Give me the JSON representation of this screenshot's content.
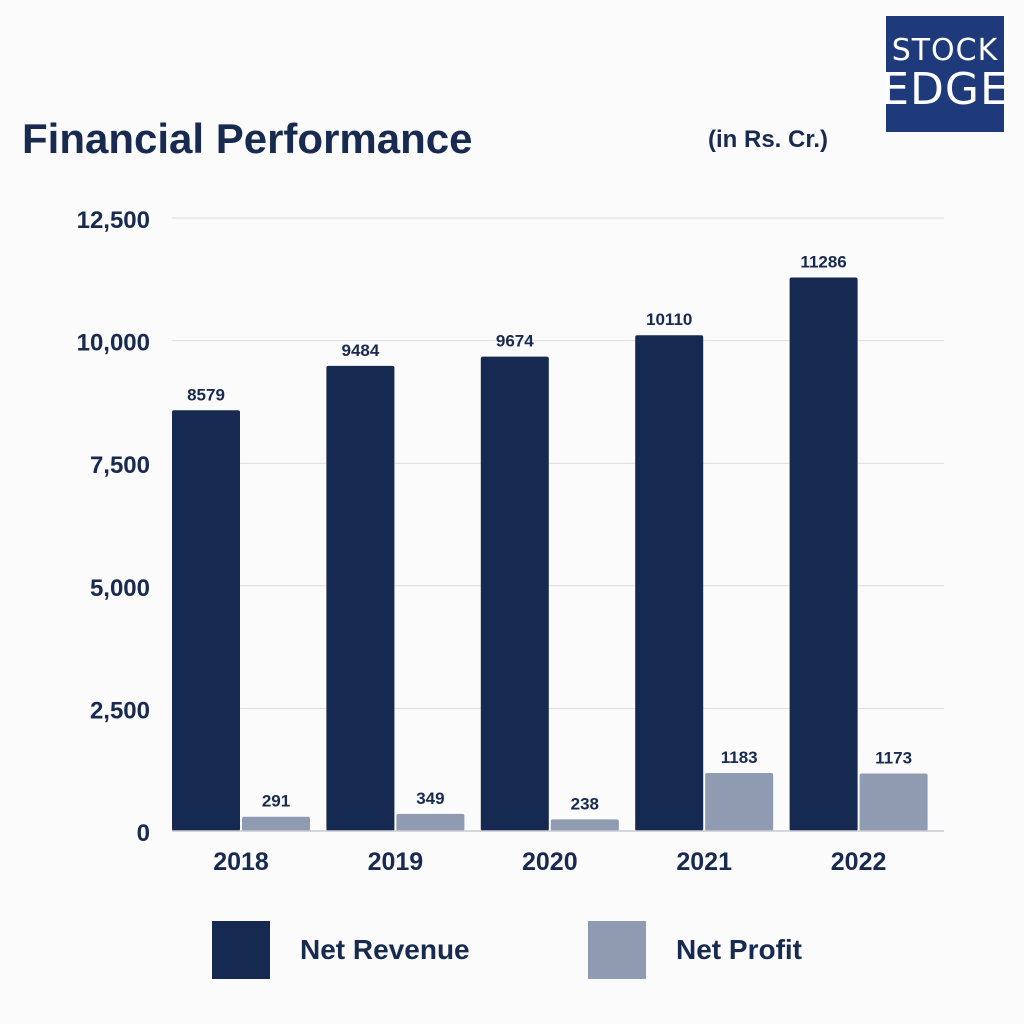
{
  "header": {
    "title": "Financial Performance",
    "unit": "(in Rs. Cr.)"
  },
  "logo": {
    "line1": "STOCK",
    "line2": "EDGE",
    "color": "#1f3a7a"
  },
  "chart_data": {
    "type": "bar",
    "categories": [
      "2018",
      "2019",
      "2020",
      "2021",
      "2022"
    ],
    "series": [
      {
        "name": "Net Revenue",
        "values": [
          8579,
          9484,
          9674,
          10110,
          11286
        ],
        "color": "#162950"
      },
      {
        "name": "Net Profit",
        "values": [
          291,
          349,
          238,
          1183,
          1173
        ],
        "color": "#8f9bb1"
      }
    ],
    "title": "Financial Performance",
    "subtitle": "(in Rs. Cr.)",
    "ylim": [
      0,
      12500
    ],
    "yticks": [
      0,
      2500,
      5000,
      7500,
      10000,
      12500
    ],
    "ytick_labels": [
      "0",
      "2,500",
      "5,000",
      "7,500",
      "10,000",
      "12,500"
    ],
    "grid": true,
    "legend_position": "bottom"
  },
  "legend": {
    "items": [
      {
        "label": "Net Revenue",
        "color": "#162950"
      },
      {
        "label": "Net Profit",
        "color": "#8f9bb1"
      }
    ]
  }
}
